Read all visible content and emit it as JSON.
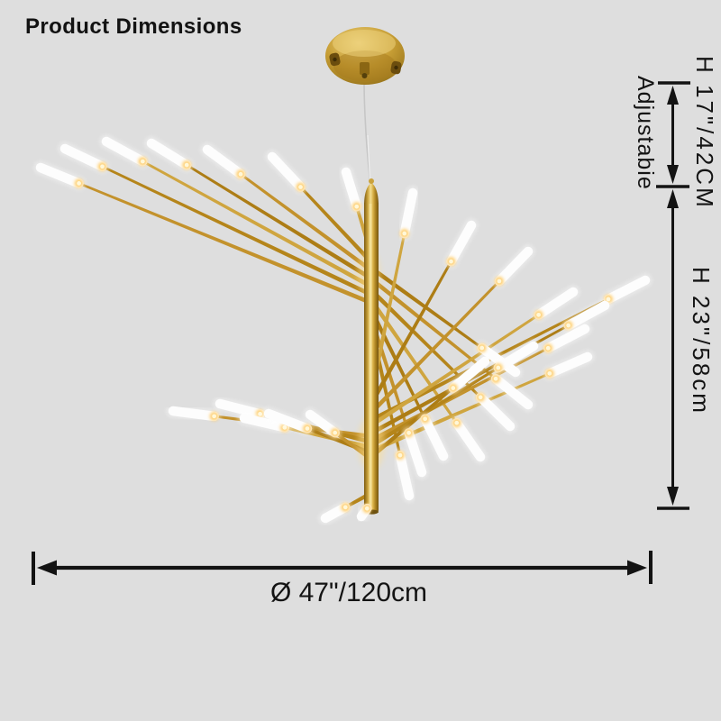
{
  "page": {
    "title": "Product Dimensions",
    "background_color": "#dedede",
    "annotation_color": "#141414"
  },
  "product": {
    "kind": "sputnik-spiral-led-chandelier",
    "finish_gold_color": "#c3922c",
    "led_tube_color": "#ffffff",
    "canopy": "round-gold-ceiling-canopy"
  },
  "dimensions": {
    "hanging_height": {
      "label": "H 17\"/42CM",
      "note": "Adjustabie"
    },
    "fixture_height": {
      "label": "H 23\"/58cm"
    },
    "diameter": {
      "label": "Ø 47\"/120cm"
    }
  }
}
